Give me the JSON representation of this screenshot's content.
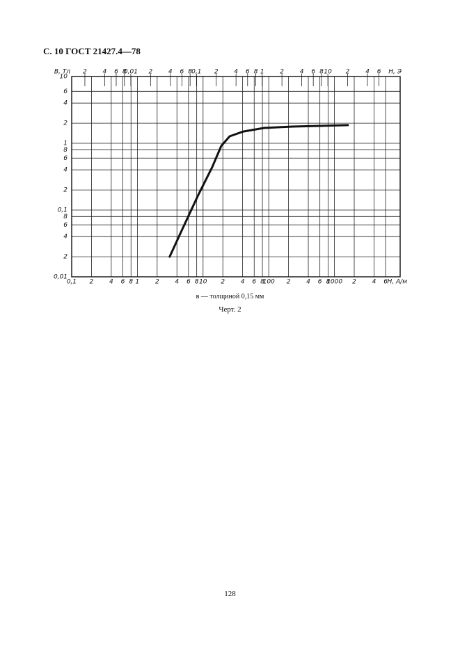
{
  "header": "С. 10 ГОСТ 21427.4—78",
  "chart_data": {
    "type": "line",
    "y_label": "В, Тл",
    "x_label": "Н, А/м",
    "x2_label": "Н, Э",
    "log_x": true,
    "log_y": true,
    "grid": true,
    "xlim": [
      0.1,
      10000
    ],
    "xticks": [
      {
        "value": 0.1,
        "label": "0,1"
      },
      {
        "value": 0.2,
        "label": "2"
      },
      {
        "value": 0.4,
        "label": "4"
      },
      {
        "value": 0.6,
        "label": "6"
      },
      {
        "value": 0.8,
        "label": "8"
      },
      1,
      2,
      4,
      6,
      8,
      10,
      {
        "value": 20,
        "label": "2"
      },
      {
        "value": 40,
        "label": "4"
      },
      {
        "value": 60,
        "label": "6"
      },
      {
        "value": 80,
        "label": "8"
      },
      100,
      {
        "value": 200,
        "label": "2"
      },
      {
        "value": 400,
        "label": "4"
      },
      {
        "value": 600,
        "label": "6"
      },
      {
        "value": 800,
        "label": "8"
      },
      1000,
      {
        "value": 2000,
        "label": "2"
      },
      {
        "value": 4000,
        "label": "4"
      },
      {
        "value": 6000,
        "label": "6"
      }
    ],
    "x2lim": [
      0.00126,
      126
    ],
    "x2ticks": [
      {
        "value": 0.002,
        "label": "2"
      },
      {
        "value": 0.004,
        "label": "4"
      },
      {
        "value": 0.006,
        "label": "6"
      },
      {
        "value": 0.008,
        "label": "8"
      },
      {
        "value": 0.01,
        "label": "0,01"
      },
      {
        "value": 0.02,
        "label": "2"
      },
      {
        "value": 0.04,
        "label": "4"
      },
      {
        "value": 0.06,
        "label": "6"
      },
      {
        "value": 0.08,
        "label": "8"
      },
      {
        "value": 0.1,
        "label": "0,1"
      },
      {
        "value": 0.2,
        "label": "2"
      },
      {
        "value": 0.4,
        "label": "4"
      },
      {
        "value": 0.6,
        "label": "6"
      },
      {
        "value": 0.8,
        "label": "8"
      },
      1,
      2,
      4,
      6,
      8,
      10,
      {
        "value": 20,
        "label": "2"
      },
      {
        "value": 40,
        "label": "4"
      },
      {
        "value": 60,
        "label": "6"
      }
    ],
    "ylim": [
      0.01,
      10
    ],
    "yticks": [
      {
        "value": 0.01,
        "label": "0,01"
      },
      {
        "value": 0.02,
        "label": "2"
      },
      {
        "value": 0.04,
        "label": "4"
      },
      {
        "value": 0.06,
        "label": "6"
      },
      {
        "value": 0.08,
        "label": "8"
      },
      {
        "value": 0.1,
        "label": "0,1"
      },
      {
        "value": 0.2,
        "label": "2"
      },
      {
        "value": 0.4,
        "label": "4"
      },
      {
        "value": 0.6,
        "label": "6"
      },
      {
        "value": 0.8,
        "label": "8"
      },
      1,
      2,
      4,
      6,
      10
    ],
    "series": [
      {
        "color": "#111111",
        "x": [
          3.1,
          4.8,
          8.5,
          13.8,
          18.9,
          25.4,
          41,
          86,
          228,
          605,
          1600
        ],
        "values": [
          0.02,
          0.051,
          0.17,
          0.44,
          0.91,
          1.27,
          1.5,
          1.7,
          1.78,
          1.82,
          1.87
        ]
      }
    ]
  },
  "caption": "в — толщиной 0,15 мм",
  "figure_label": "Черт. 2",
  "page_number": "128"
}
